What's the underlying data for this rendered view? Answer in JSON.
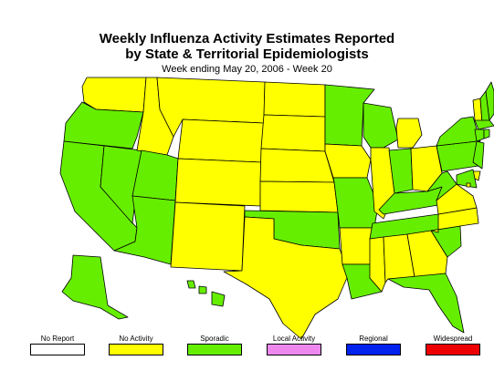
{
  "header": {
    "title_line1": "Weekly Influenza Activity Estimates Reported",
    "title_line2": "by State & Territorial Epidemiologists",
    "subtitle": "Week ending May 20, 2006 - Week 20"
  },
  "colors": {
    "no_report": "#ffffff",
    "no_activity": "#ffff00",
    "sporadic": "#66ee00",
    "local_activity": "#ee88ee",
    "regional": "#0022ee",
    "widespread": "#ee0000",
    "border": "#000000"
  },
  "legend": [
    {
      "key": "no_report",
      "label": "No Report"
    },
    {
      "key": "no_activity",
      "label": "No Activity"
    },
    {
      "key": "sporadic",
      "label": "Sporadic"
    },
    {
      "key": "local_activity",
      "label": "Local Activity"
    },
    {
      "key": "regional",
      "label": "Regional"
    },
    {
      "key": "widespread",
      "label": "Widespread"
    }
  ],
  "states": {
    "WA": "no_activity",
    "OR": "sporadic",
    "CA": "sporadic",
    "NV": "sporadic",
    "ID": "no_activity",
    "MT": "no_activity",
    "WY": "no_activity",
    "UT": "sporadic",
    "AZ": "sporadic",
    "CO": "no_activity",
    "NM": "no_activity",
    "ND": "no_activity",
    "SD": "no_activity",
    "NE": "no_activity",
    "KS": "no_activity",
    "OK": "sporadic",
    "TX": "no_activity",
    "MN": "sporadic",
    "IA": "no_activity",
    "MO": "sporadic",
    "AR": "no_activity",
    "LA": "sporadic",
    "WI": "sporadic",
    "IL": "no_activity",
    "MI": "no_activity",
    "IN": "sporadic",
    "OH": "no_activity",
    "KY": "sporadic",
    "TN": "sporadic",
    "MS": "no_activity",
    "AL": "no_activity",
    "GA": "no_activity",
    "FL": "sporadic",
    "SC": "sporadic",
    "NC": "no_activity",
    "VA": "no_activity",
    "WV": "sporadic",
    "PA": "sporadic",
    "NY": "sporadic",
    "VT": "no_activity",
    "NH": "sporadic",
    "ME": "sporadic",
    "MA": "sporadic",
    "CT": "sporadic",
    "RI": "sporadic",
    "NJ": "sporadic",
    "DE": "no_activity",
    "MD": "sporadic",
    "DC": "no_activity",
    "AK": "sporadic",
    "HI": "sporadic"
  }
}
